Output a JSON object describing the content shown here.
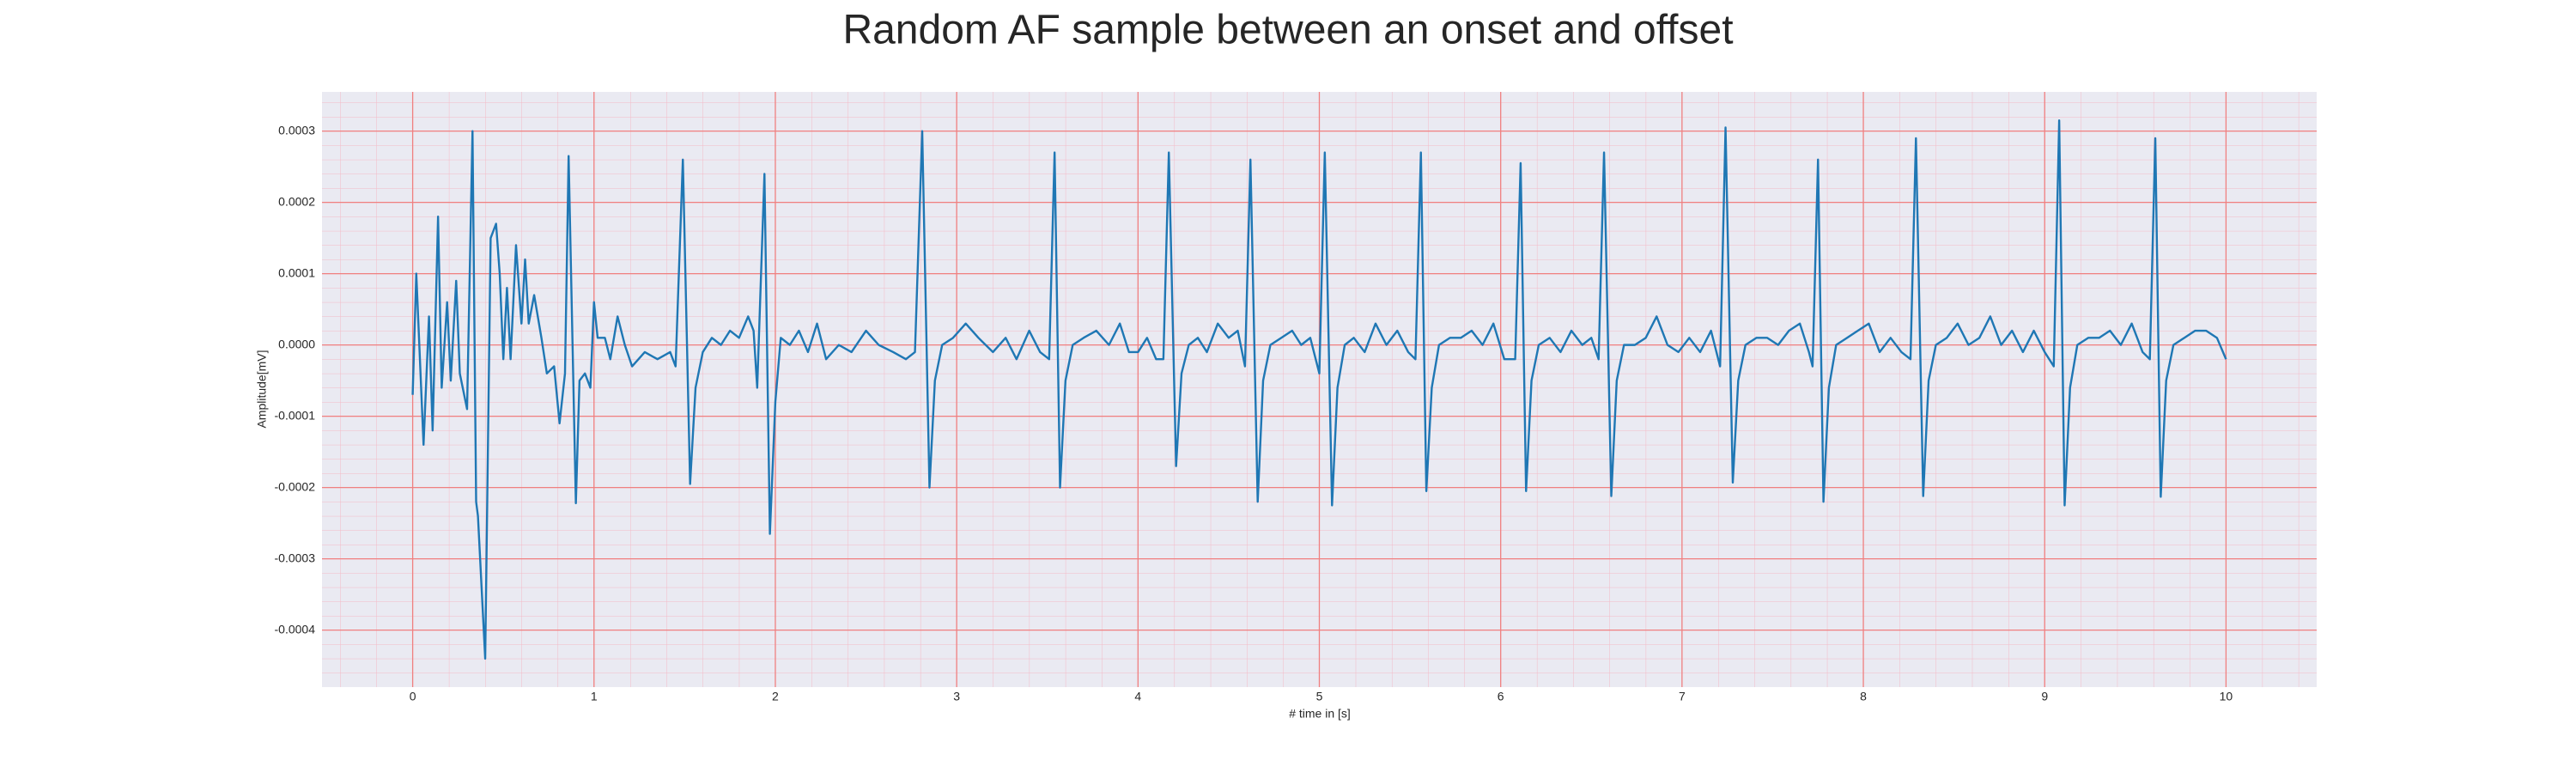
{
  "chart_data": {
    "type": "line",
    "title": "Random AF sample between an onset and offset",
    "xlabel": "# time in [s]",
    "ylabel": "Amplitude[mV]",
    "xlim": [
      -0.5,
      10.5
    ],
    "ylim": [
      -0.00048,
      0.000355
    ],
    "xticks": [
      0,
      1,
      2,
      3,
      4,
      5,
      6,
      7,
      8,
      9,
      10
    ],
    "yticks": [
      -0.0004,
      -0.0003,
      -0.0002,
      -0.0001,
      {
        "value": 0,
        "label": "0.0000"
      },
      0.0001,
      0.0002,
      0.0003
    ],
    "grid": true,
    "x": [
      0,
      0.02,
      0.06,
      0.09,
      0.11,
      0.14,
      0.16,
      0.19,
      0.21,
      0.24,
      0.26,
      0.3,
      0.33,
      0.35,
      0.36,
      0.4,
      0.43,
      0.46,
      0.48,
      0.5,
      0.52,
      0.54,
      0.57,
      0.6,
      0.62,
      0.64,
      0.67,
      0.71,
      0.74,
      0.78,
      0.81,
      0.84,
      0.86,
      0.9,
      0.92,
      0.95,
      0.98,
      1.0,
      1.02,
      1.06,
      1.09,
      1.13,
      1.17,
      1.21,
      1.28,
      1.35,
      1.42,
      1.45,
      1.49,
      1.53,
      1.56,
      1.6,
      1.65,
      1.7,
      1.75,
      1.8,
      1.85,
      1.88,
      1.9,
      1.94,
      1.97,
      2.0,
      2.03,
      2.08,
      2.13,
      2.18,
      2.23,
      2.28,
      2.35,
      2.42,
      2.5,
      2.57,
      2.65,
      2.72,
      2.77,
      2.81,
      2.85,
      2.88,
      2.92,
      2.98,
      3.05,
      3.12,
      3.2,
      3.27,
      3.33,
      3.4,
      3.46,
      3.51,
      3.54,
      3.57,
      3.6,
      3.64,
      3.7,
      3.77,
      3.84,
      3.9,
      3.95,
      4.0,
      4.05,
      4.1,
      4.14,
      4.17,
      4.21,
      4.24,
      4.28,
      4.33,
      4.38,
      4.44,
      4.5,
      4.55,
      4.59,
      4.62,
      4.66,
      4.69,
      4.73,
      4.79,
      4.85,
      4.9,
      4.95,
      5.0,
      5.03,
      5.07,
      5.1,
      5.14,
      5.19,
      5.25,
      5.31,
      5.37,
      5.43,
      5.49,
      5.53,
      5.56,
      5.59,
      5.62,
      5.66,
      5.72,
      5.78,
      5.84,
      5.9,
      5.96,
      6.02,
      6.08,
      6.11,
      6.14,
      6.17,
      6.21,
      6.27,
      6.33,
      6.39,
      6.45,
      6.5,
      6.54,
      6.57,
      6.61,
      6.64,
      6.68,
      6.74,
      6.8,
      6.86,
      6.92,
      6.98,
      7.04,
      7.1,
      7.16,
      7.21,
      7.24,
      7.28,
      7.31,
      7.35,
      7.41,
      7.47,
      7.53,
      7.59,
      7.65,
      7.7,
      7.72,
      7.75,
      7.78,
      7.81,
      7.85,
      7.91,
      7.97,
      8.03,
      8.09,
      8.15,
      8.21,
      8.26,
      8.29,
      8.33,
      8.36,
      8.4,
      8.46,
      8.52,
      8.58,
      8.64,
      8.7,
      8.76,
      8.82,
      8.88,
      8.94,
      9.0,
      9.05,
      9.08,
      9.11,
      9.14,
      9.18,
      9.24,
      9.3,
      9.36,
      9.42,
      9.48,
      9.54,
      9.58,
      9.61,
      9.64,
      9.67,
      9.71,
      9.77,
      9.83,
      9.89,
      9.95,
      10.0
    ],
    "series": [
      {
        "color": "#1f77b4",
        "values": [
          -7e-05,
          0.0001,
          -0.00014,
          4e-05,
          -0.00012,
          0.00018,
          -6e-05,
          6e-05,
          -5e-05,
          9e-05,
          -4e-05,
          -9e-05,
          0.0003,
          -0.00022,
          -0.00024,
          -0.00044,
          0.00015,
          0.00017,
          0.0001,
          -2e-05,
          8e-05,
          -2e-05,
          0.00014,
          3e-05,
          0.00012,
          3e-05,
          7e-05,
          1e-05,
          -4e-05,
          -3e-05,
          -0.00011,
          -4e-05,
          0.000265,
          -0.000222,
          -5e-05,
          -4e-05,
          -6e-05,
          6e-05,
          1e-05,
          1e-05,
          -2e-05,
          4e-05,
          0,
          -3e-05,
          -1e-05,
          -2e-05,
          -1e-05,
          -3e-05,
          0.00026,
          -0.000195,
          -6e-05,
          -1e-05,
          1e-05,
          0,
          2e-05,
          1e-05,
          4e-05,
          2e-05,
          -6e-05,
          0.00024,
          -0.000265,
          -8e-05,
          1e-05,
          0,
          2e-05,
          -1e-05,
          3e-05,
          -2e-05,
          0,
          -1e-05,
          2e-05,
          0,
          -1e-05,
          -2e-05,
          -1e-05,
          0.0003,
          -0.0002,
          -5e-05,
          0,
          1e-05,
          3e-05,
          1e-05,
          -1e-05,
          1e-05,
          -2e-05,
          2e-05,
          -1e-05,
          -2e-05,
          0.00027,
          -0.0002,
          -5e-05,
          0,
          1e-05,
          2e-05,
          0,
          3e-05,
          -1e-05,
          -1e-05,
          1e-05,
          -2e-05,
          -2e-05,
          0.00027,
          -0.00017,
          -4e-05,
          0,
          1e-05,
          -1e-05,
          3e-05,
          1e-05,
          2e-05,
          -3e-05,
          0.00026,
          -0.00022,
          -5e-05,
          0,
          1e-05,
          2e-05,
          0,
          1e-05,
          -4e-05,
          0.00027,
          -0.000225,
          -6e-05,
          0,
          1e-05,
          -1e-05,
          3e-05,
          0,
          2e-05,
          -1e-05,
          -2e-05,
          0.00027,
          -0.000205,
          -6e-05,
          0,
          1e-05,
          1e-05,
          2e-05,
          0,
          3e-05,
          -2e-05,
          -2e-05,
          0.000255,
          -0.000205,
          -5e-05,
          0,
          1e-05,
          -1e-05,
          2e-05,
          0,
          1e-05,
          -2e-05,
          0.00027,
          -0.000212,
          -5e-05,
          0,
          0,
          1e-05,
          4e-05,
          0,
          -1e-05,
          1e-05,
          -1e-05,
          2e-05,
          -3e-05,
          0.000305,
          -0.000193,
          -5e-05,
          0,
          1e-05,
          1e-05,
          0,
          2e-05,
          3e-05,
          -1e-05,
          -3e-05,
          0.00026,
          -0.00022,
          -6e-05,
          0,
          1e-05,
          2e-05,
          3e-05,
          -1e-05,
          1e-05,
          -1e-05,
          -2e-05,
          0.00029,
          -0.000212,
          -5e-05,
          0,
          1e-05,
          3e-05,
          0,
          1e-05,
          4e-05,
          0,
          2e-05,
          -1e-05,
          2e-05,
          -1e-05,
          -3e-05,
          0.000315,
          -0.000225,
          -6e-05,
          0,
          1e-05,
          1e-05,
          2e-05,
          0,
          3e-05,
          -1e-05,
          -2e-05,
          0.00029,
          -0.000213,
          -5e-05,
          0,
          1e-05,
          2e-05,
          2e-05,
          1e-05,
          -2e-05
        ]
      }
    ]
  }
}
